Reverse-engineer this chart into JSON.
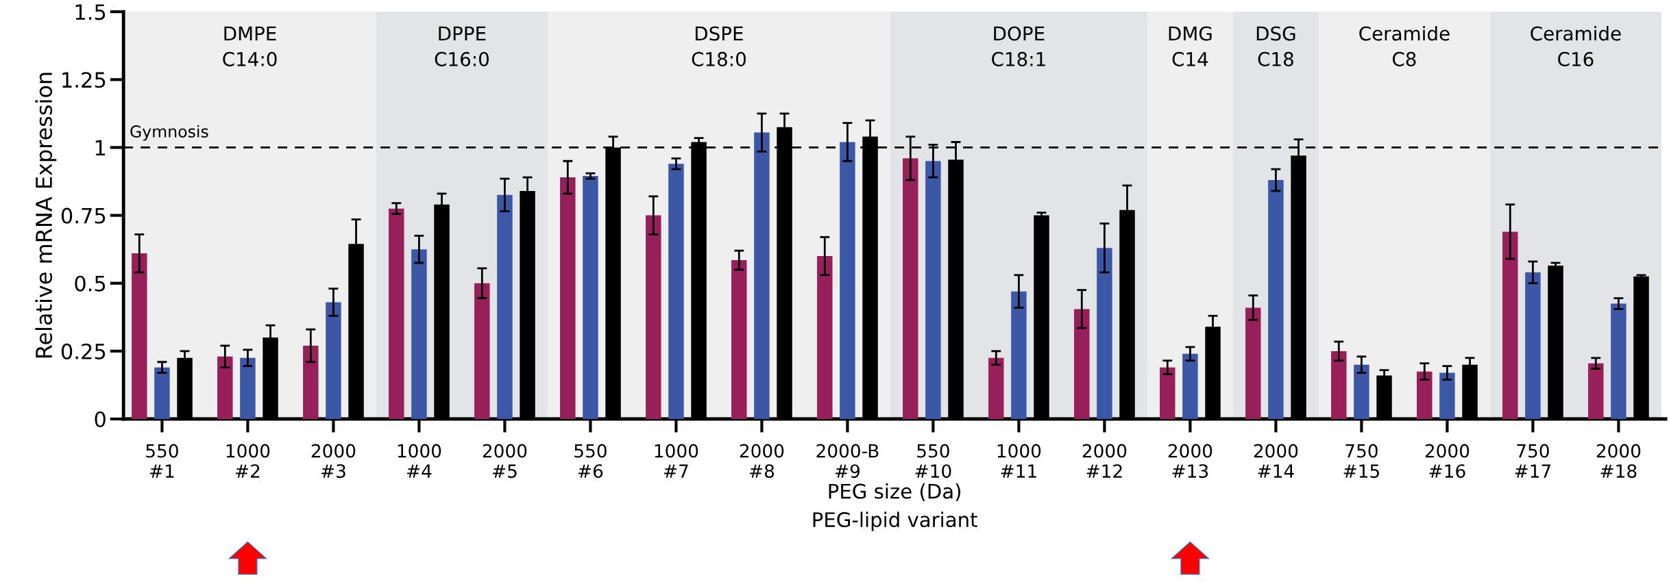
{
  "chart_data": {
    "type": "bar",
    "ylabel": "Relative mRNA Expression",
    "xlabel": "PEG size (Da)\nPEG-lipid variant",
    "categories": [
      "550\n#1",
      "1000\n#2",
      "2000\n#3",
      "1000\n#4",
      "2000\n#5",
      "550\n#6",
      "1000\n#7",
      "2000\n#8",
      "2000-B\n#9",
      "550\n#10",
      "1000\n#11",
      "2000\n#12",
      "2000\n#13",
      "2000\n#14",
      "750\n#15",
      "2000\n#16",
      "750\n#17",
      "2000\n#18"
    ],
    "series": [
      {
        "color": "#98205a",
        "values": [
          0.61,
          0.23,
          0.27,
          0.775,
          0.5,
          0.89,
          0.75,
          0.585,
          0.6,
          0.96,
          0.225,
          0.405,
          0.19,
          0.41,
          0.25,
          0.175,
          0.69,
          0.205
        ],
        "errors": [
          0.07,
          0.04,
          0.06,
          0.02,
          0.055,
          0.06,
          0.07,
          0.035,
          0.07,
          0.08,
          0.025,
          0.07,
          0.025,
          0.045,
          0.035,
          0.03,
          0.1,
          0.02
        ]
      },
      {
        "color": "#3d57a7",
        "values": [
          0.19,
          0.225,
          0.43,
          0.625,
          0.825,
          0.895,
          0.94,
          1.055,
          1.02,
          0.95,
          0.47,
          0.63,
          0.24,
          0.88,
          0.2,
          0.17,
          0.54,
          0.425
        ],
        "errors": [
          0.02,
          0.03,
          0.05,
          0.05,
          0.06,
          0.01,
          0.02,
          0.07,
          0.07,
          0.06,
          0.06,
          0.09,
          0.025,
          0.04,
          0.03,
          0.025,
          0.04,
          0.02
        ]
      },
      {
        "color": "#000000",
        "values": [
          0.225,
          0.3,
          0.645,
          0.79,
          0.84,
          1.0,
          1.02,
          1.075,
          1.04,
          0.955,
          0.75,
          0.77,
          0.34,
          0.97,
          0.16,
          0.2,
          0.565,
          0.525
        ],
        "errors": [
          0.025,
          0.045,
          0.09,
          0.04,
          0.05,
          0.04,
          0.015,
          0.05,
          0.06,
          0.065,
          0.01,
          0.09,
          0.04,
          0.06,
          0.02,
          0.025,
          0.01,
          0.005
        ]
      }
    ],
    "ylim": [
      0,
      1.5
    ],
    "yticks": [
      0,
      0.25,
      0.5,
      0.75,
      1,
      1.25,
      1.5
    ],
    "ref_lines": [
      {
        "axis": "y",
        "value": 1,
        "label": "Gymnosis",
        "color": "#000000",
        "line_style": "dashed"
      }
    ],
    "bands": [
      {
        "axis": "x",
        "from": "550\n#1",
        "to": "2000\n#3",
        "label": "DMPE\nC14:0",
        "color": "#efefef"
      },
      {
        "axis": "x",
        "from": "1000\n#4",
        "to": "2000\n#5",
        "label": "DPPE\nC16:0",
        "color": "#e2e4e7"
      },
      {
        "axis": "x",
        "from": "550\n#6",
        "to": "2000-B\n#9",
        "label": "DSPE\nC18:0",
        "color": "#efefef"
      },
      {
        "axis": "x",
        "from": "550\n#10",
        "to": "2000\n#12",
        "label": "DOPE\nC18:1",
        "color": "#e2e4e7"
      },
      {
        "axis": "x",
        "from": "2000\n#13",
        "to": "2000\n#13",
        "label": "DMG\nC14",
        "color": "#efefef"
      },
      {
        "axis": "x",
        "from": "2000\n#14",
        "to": "2000\n#14",
        "label": "DSG\nC18",
        "color": "#e2e4e7"
      },
      {
        "axis": "x",
        "from": "750\n#15",
        "to": "2000\n#16",
        "label": "Ceramide\nC8",
        "color": "#efefef"
      },
      {
        "axis": "x",
        "from": "750\n#17",
        "to": "2000\n#18",
        "label": "Ceramide\nC16",
        "color": "#e2e4e7"
      }
    ],
    "grid": false
  }
}
